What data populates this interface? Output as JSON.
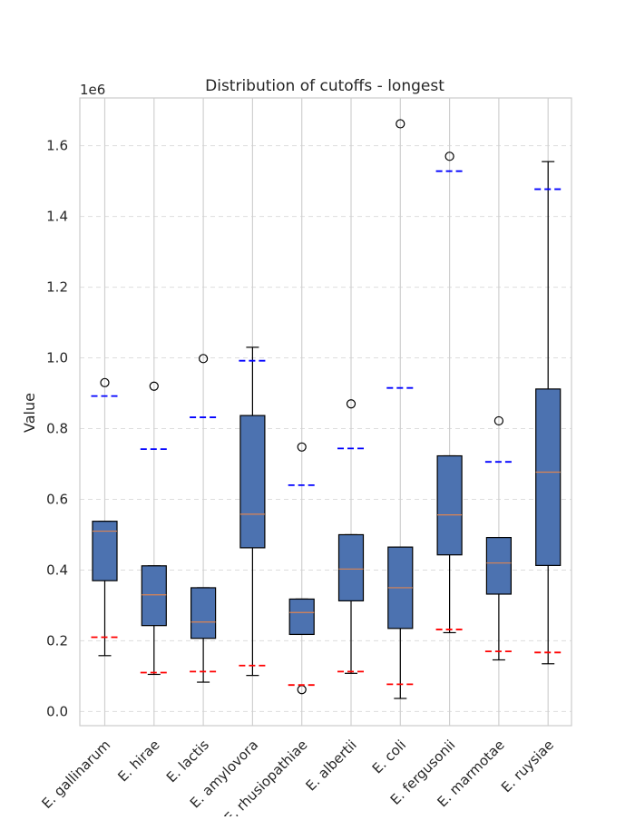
{
  "chart_data": {
    "type": "boxplot",
    "title": "Distribution of cutoffs - longest",
    "ylabel": "Value",
    "xlabel": "",
    "y_offset_label": "1e6",
    "ylim": [
      -0.04,
      1.735
    ],
    "yticks": [
      0.0,
      0.2,
      0.4,
      0.6,
      0.8,
      1.0,
      1.2,
      1.4,
      1.6
    ],
    "ytick_labels": [
      "0.0",
      "0.2",
      "0.4",
      "0.6",
      "0.8",
      "1.0",
      "1.2",
      "1.4",
      "1.6"
    ],
    "grid": true,
    "categories": [
      "E. gallinarum",
      "E. hirae",
      "E. lactis",
      "E. amylovora",
      "E. rhusiopathiae",
      "E. albertii",
      "E. coli",
      "E. fergusonii",
      "E. marmotae",
      "E. ruysiae"
    ],
    "boxes": [
      {
        "whisker_low": 0.158,
        "q1": 0.37,
        "median": 0.51,
        "q3": 0.538,
        "whisker_high": 0.538,
        "outliers": [
          0.93
        ],
        "upper_ref": 0.892,
        "lower_ref": 0.21
      },
      {
        "whisker_low": 0.105,
        "q1": 0.243,
        "median": 0.33,
        "q3": 0.412,
        "whisker_high": 0.412,
        "outliers": [
          0.92
        ],
        "upper_ref": 0.742,
        "lower_ref": 0.11
      },
      {
        "whisker_low": 0.083,
        "q1": 0.207,
        "median": 0.253,
        "q3": 0.35,
        "whisker_high": 0.35,
        "outliers": [
          0.998
        ],
        "upper_ref": 0.832,
        "lower_ref": 0.113
      },
      {
        "whisker_low": 0.102,
        "q1": 0.463,
        "median": 0.558,
        "q3": 0.837,
        "whisker_high": 1.03,
        "outliers": [],
        "upper_ref": 0.992,
        "lower_ref": 0.13
      },
      {
        "whisker_low": 0.218,
        "q1": 0.218,
        "median": 0.28,
        "q3": 0.318,
        "whisker_high": 0.318,
        "outliers": [
          0.748,
          0.062
        ],
        "upper_ref": 0.64,
        "lower_ref": 0.075
      },
      {
        "whisker_low": 0.108,
        "q1": 0.313,
        "median": 0.403,
        "q3": 0.5,
        "whisker_high": 0.5,
        "outliers": [
          0.87
        ],
        "upper_ref": 0.744,
        "lower_ref": 0.113
      },
      {
        "whisker_low": 0.037,
        "q1": 0.235,
        "median": 0.35,
        "q3": 0.465,
        "whisker_high": 0.465,
        "outliers": [
          1.662
        ],
        "upper_ref": 0.915,
        "lower_ref": 0.077
      },
      {
        "whisker_low": 0.223,
        "q1": 0.443,
        "median": 0.556,
        "q3": 0.723,
        "whisker_high": 0.723,
        "outliers": [
          1.57
        ],
        "upper_ref": 1.528,
        "lower_ref": 0.232
      },
      {
        "whisker_low": 0.146,
        "q1": 0.332,
        "median": 0.42,
        "q3": 0.492,
        "whisker_high": 0.492,
        "outliers": [
          0.822
        ],
        "upper_ref": 0.706,
        "lower_ref": 0.17
      },
      {
        "whisker_low": 0.135,
        "q1": 0.413,
        "median": 0.677,
        "q3": 0.912,
        "whisker_high": 1.555,
        "outliers": [],
        "upper_ref": 1.477,
        "lower_ref": 0.167
      }
    ],
    "colors": {
      "box_fill": "#4c72b0",
      "median": "#dd8452",
      "upper_ref": "#0000ff",
      "lower_ref": "#ff0000",
      "grid": "#dddddd",
      "frame": "#cccccc",
      "vgrid": "#d0d0d0"
    }
  }
}
